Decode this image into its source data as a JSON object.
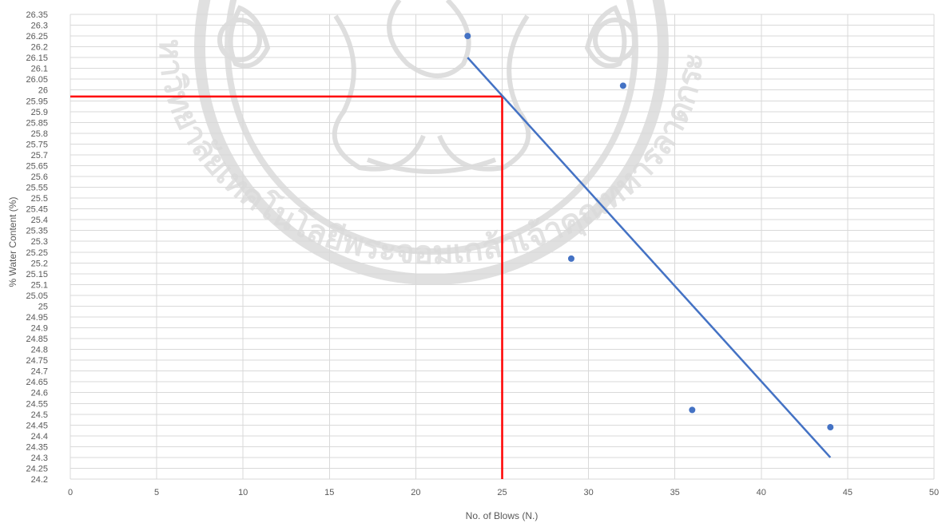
{
  "chart_data": {
    "type": "scatter",
    "title": "",
    "xlabel": "No. of Blows (N.)",
    "ylabel": "% Water Content (%)",
    "xlim": [
      0,
      50
    ],
    "ylim": [
      24.2,
      26.35
    ],
    "x_tick_step": 5,
    "y_tick_step": 0.05,
    "grid": true,
    "legend": "none",
    "points": [
      {
        "x": 23,
        "y": 26.25
      },
      {
        "x": 29,
        "y": 25.22
      },
      {
        "x": 32,
        "y": 26.02
      },
      {
        "x": 36,
        "y": 24.52
      },
      {
        "x": 44,
        "y": 24.44
      }
    ],
    "trendline": {
      "x": [
        23,
        44
      ],
      "y": [
        26.15,
        24.3
      ]
    },
    "reference_lines": {
      "x": 25,
      "y": 25.97
    },
    "colors": {
      "points": "#4472c4",
      "trendline": "#4472c4",
      "reference": "#ff0000",
      "grid": "#d9d9d9",
      "watermark": "#bdbdbd"
    }
  },
  "watermark": {
    "text": "มหาวิทยาลัยเทคโนโลยีพระจอมเกล้าเจ้าคุณทหารลาดกระบัง"
  }
}
